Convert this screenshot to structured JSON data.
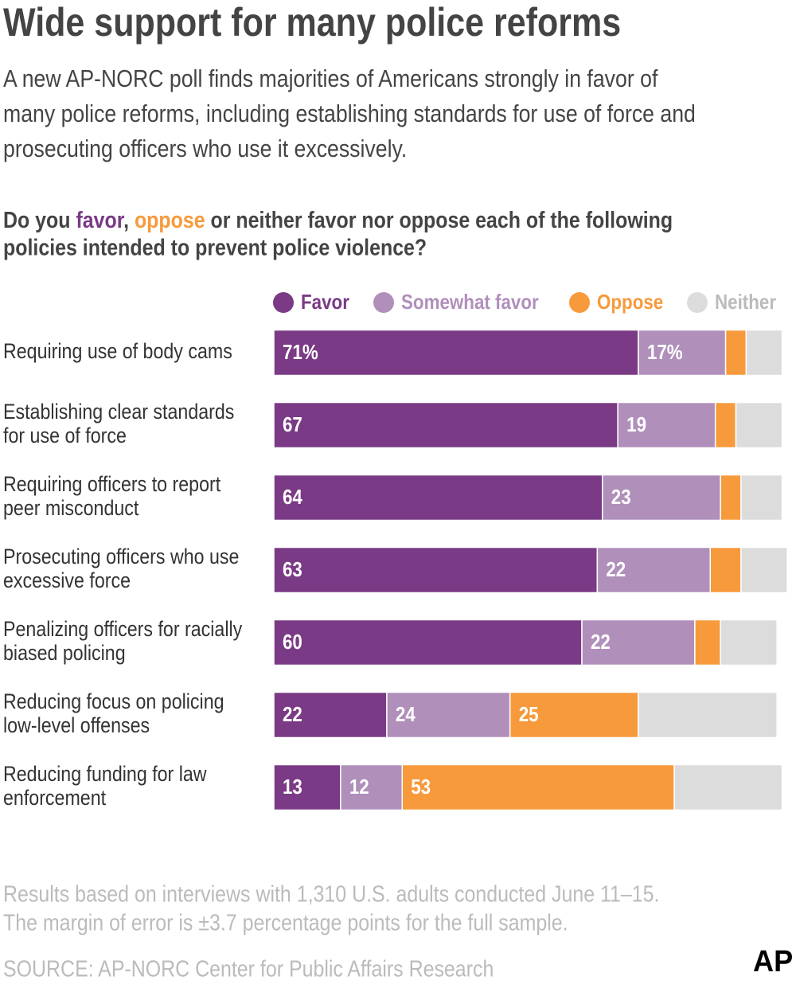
{
  "chart_data": {
    "type": "stacked-bar",
    "title": "Wide support for many police reforms",
    "subtitle": [
      "A new AP-NORC poll finds majorities of Americans strongly in favor of",
      "many police reforms, including establishing standards for use of force and",
      "prosecuting officers who use it excessively."
    ],
    "question": [
      "Do you ",
      "favor",
      ", ",
      "oppose",
      " or neither favor nor oppose each of the following",
      "policies intended to prevent police violence?"
    ],
    "categories": [
      [
        "Requiring use of body cams"
      ],
      [
        "Establishing clear standards",
        "for use of force"
      ],
      [
        "Requiring officers to report",
        "peer misconduct"
      ],
      [
        "Prosecuting officers who use",
        "excessive force"
      ],
      [
        "Penalizing officers for racially",
        "biased policing"
      ],
      [
        "Reducing focus on policing",
        "low-level offenses"
      ],
      [
        "Reducing funding for law",
        "enforcement"
      ]
    ],
    "series": [
      {
        "name": "Favor",
        "color": "#7a3a85",
        "values": [
          71,
          67,
          64,
          63,
          60,
          22,
          13
        ],
        "value_labels": [
          "71%",
          "67",
          "64",
          "63",
          "60",
          "22",
          "13"
        ]
      },
      {
        "name": "Somewhat favor",
        "color": "#b08fbb",
        "values": [
          17,
          19,
          23,
          22,
          22,
          24,
          12
        ],
        "value_labels": [
          "17%",
          "19",
          "23",
          "22",
          "22",
          "24",
          "12"
        ]
      },
      {
        "name": "Oppose",
        "color": "#f79a3c",
        "values": [
          4,
          4,
          4,
          6,
          5,
          25,
          53
        ],
        "value_labels": [
          null,
          null,
          null,
          null,
          null,
          "25",
          "53"
        ]
      },
      {
        "name": "Neither",
        "color": "#dcdcdc",
        "values": [
          7,
          9,
          8,
          9,
          11,
          27,
          21
        ]
      }
    ],
    "note": [
      "Results based on interviews with 1,310 U.S. adults conducted June 11–15.",
      "The margin of error is ±3.7 percentage points for the full sample."
    ],
    "source": "SOURCE: AP-NORC Center for Public Affairs Research",
    "logo": "AP"
  }
}
